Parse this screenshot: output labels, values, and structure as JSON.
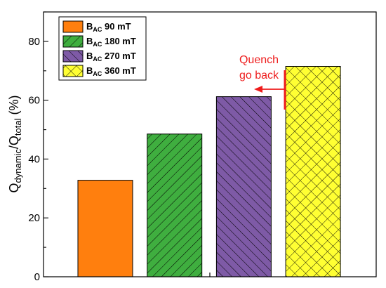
{
  "chart_data": {
    "type": "bar",
    "categories": [
      "90 mT",
      "180 mT",
      "270 mT",
      "360 mT"
    ],
    "values": [
      32.8,
      48.5,
      61.2,
      71.5
    ],
    "ylabel": {
      "main": "Q",
      "sub1": "dynamic",
      "mid": "/Q",
      "sub2": "total",
      "unit": " (%)"
    },
    "ylim": [
      0,
      90
    ],
    "yticks": [
      0,
      20,
      40,
      60,
      80
    ],
    "legend": {
      "placement": "top-left",
      "entries": [
        {
          "prefix": "B",
          "sub": "AC",
          "value": "90 mT",
          "color": "#FF7F0E",
          "pattern": "solid"
        },
        {
          "prefix": "B",
          "sub": "AC",
          "value": "180 mT",
          "color": "#3FAE3F",
          "pattern": "diag-right"
        },
        {
          "prefix": "B",
          "sub": "AC",
          "value": "270 mT",
          "color": "#7E5AA6",
          "pattern": "diag-left"
        },
        {
          "prefix": "B",
          "sub": "AC",
          "value": "360 mT",
          "color": "#FFFF33",
          "pattern": "crosshatch"
        }
      ]
    },
    "annotation": {
      "lines": [
        "Quench",
        "go back"
      ],
      "color": "#EE1C1C"
    },
    "grid": false
  }
}
